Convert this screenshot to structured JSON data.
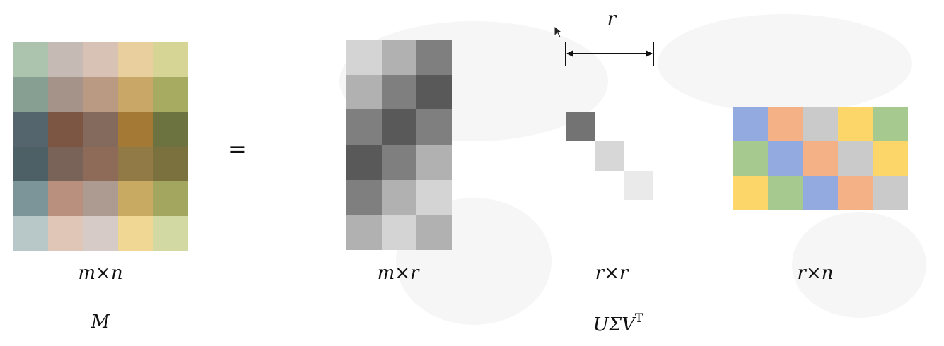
{
  "equals": "=",
  "bracket_label": "r",
  "labels": {
    "m_dim": "m×n",
    "u_dim": "m×r",
    "s_dim": "r×r",
    "v_dim": "r×n",
    "m_name": "M",
    "usv_base": "UΣV",
    "usv_sup": "T"
  },
  "matrices": {
    "M": {
      "rows": 6,
      "cols": 5,
      "colors": [
        [
          "#acc3ae",
          "#c6bab4",
          "#d8c1b5",
          "#e9ce9e",
          "#d7d596"
        ],
        [
          "#879f92",
          "#a59389",
          "#bb9a83",
          "#c9a767",
          "#a7aa61"
        ],
        [
          "#55656e",
          "#7d5643",
          "#84695d",
          "#a37935",
          "#6c7240"
        ],
        [
          "#4c6065",
          "#796359",
          "#8e6b58",
          "#917a46",
          "#7b713f"
        ],
        [
          "#7b9599",
          "#b98f7d",
          "#ad9a90",
          "#c9aa62",
          "#a3a65f"
        ],
        [
          "#b8c7c7",
          "#dfc6b6",
          "#d7cbc8",
          "#f0d793",
          "#d2d9a2"
        ]
      ]
    },
    "U": {
      "rows": 6,
      "cols": 3,
      "colors": [
        [
          "#d4d4d4",
          "#b1b1b1",
          "#7f7f7f"
        ],
        [
          "#b1b1b1",
          "#7f7f7f",
          "#595959"
        ],
        [
          "#7f7f7f",
          "#595959",
          "#7f7f7f"
        ],
        [
          "#595959",
          "#7f7f7f",
          "#b1b1b1"
        ],
        [
          "#7f7f7f",
          "#b1b1b1",
          "#d4d4d4"
        ],
        [
          "#b1b1b1",
          "#d4d4d4",
          "#b1b1b1"
        ]
      ]
    },
    "S": {
      "rows": 3,
      "cols": 3,
      "colors": [
        [
          "#737373",
          "transparent",
          "transparent"
        ],
        [
          "transparent",
          "#d7d7d7",
          "transparent"
        ],
        [
          "transparent",
          "transparent",
          "#eaeaea"
        ]
      ]
    },
    "V": {
      "rows": 3,
      "cols": 5,
      "colors": [
        [
          "#92aadf",
          "#f4b186",
          "#cacaca",
          "#fcd669",
          "#a6c98f"
        ],
        [
          "#a6c98f",
          "#92aadf",
          "#f4b186",
          "#cacaca",
          "#fcd669"
        ],
        [
          "#fcd669",
          "#a6c98f",
          "#92aadf",
          "#f4b186",
          "#cacaca"
        ]
      ]
    }
  }
}
